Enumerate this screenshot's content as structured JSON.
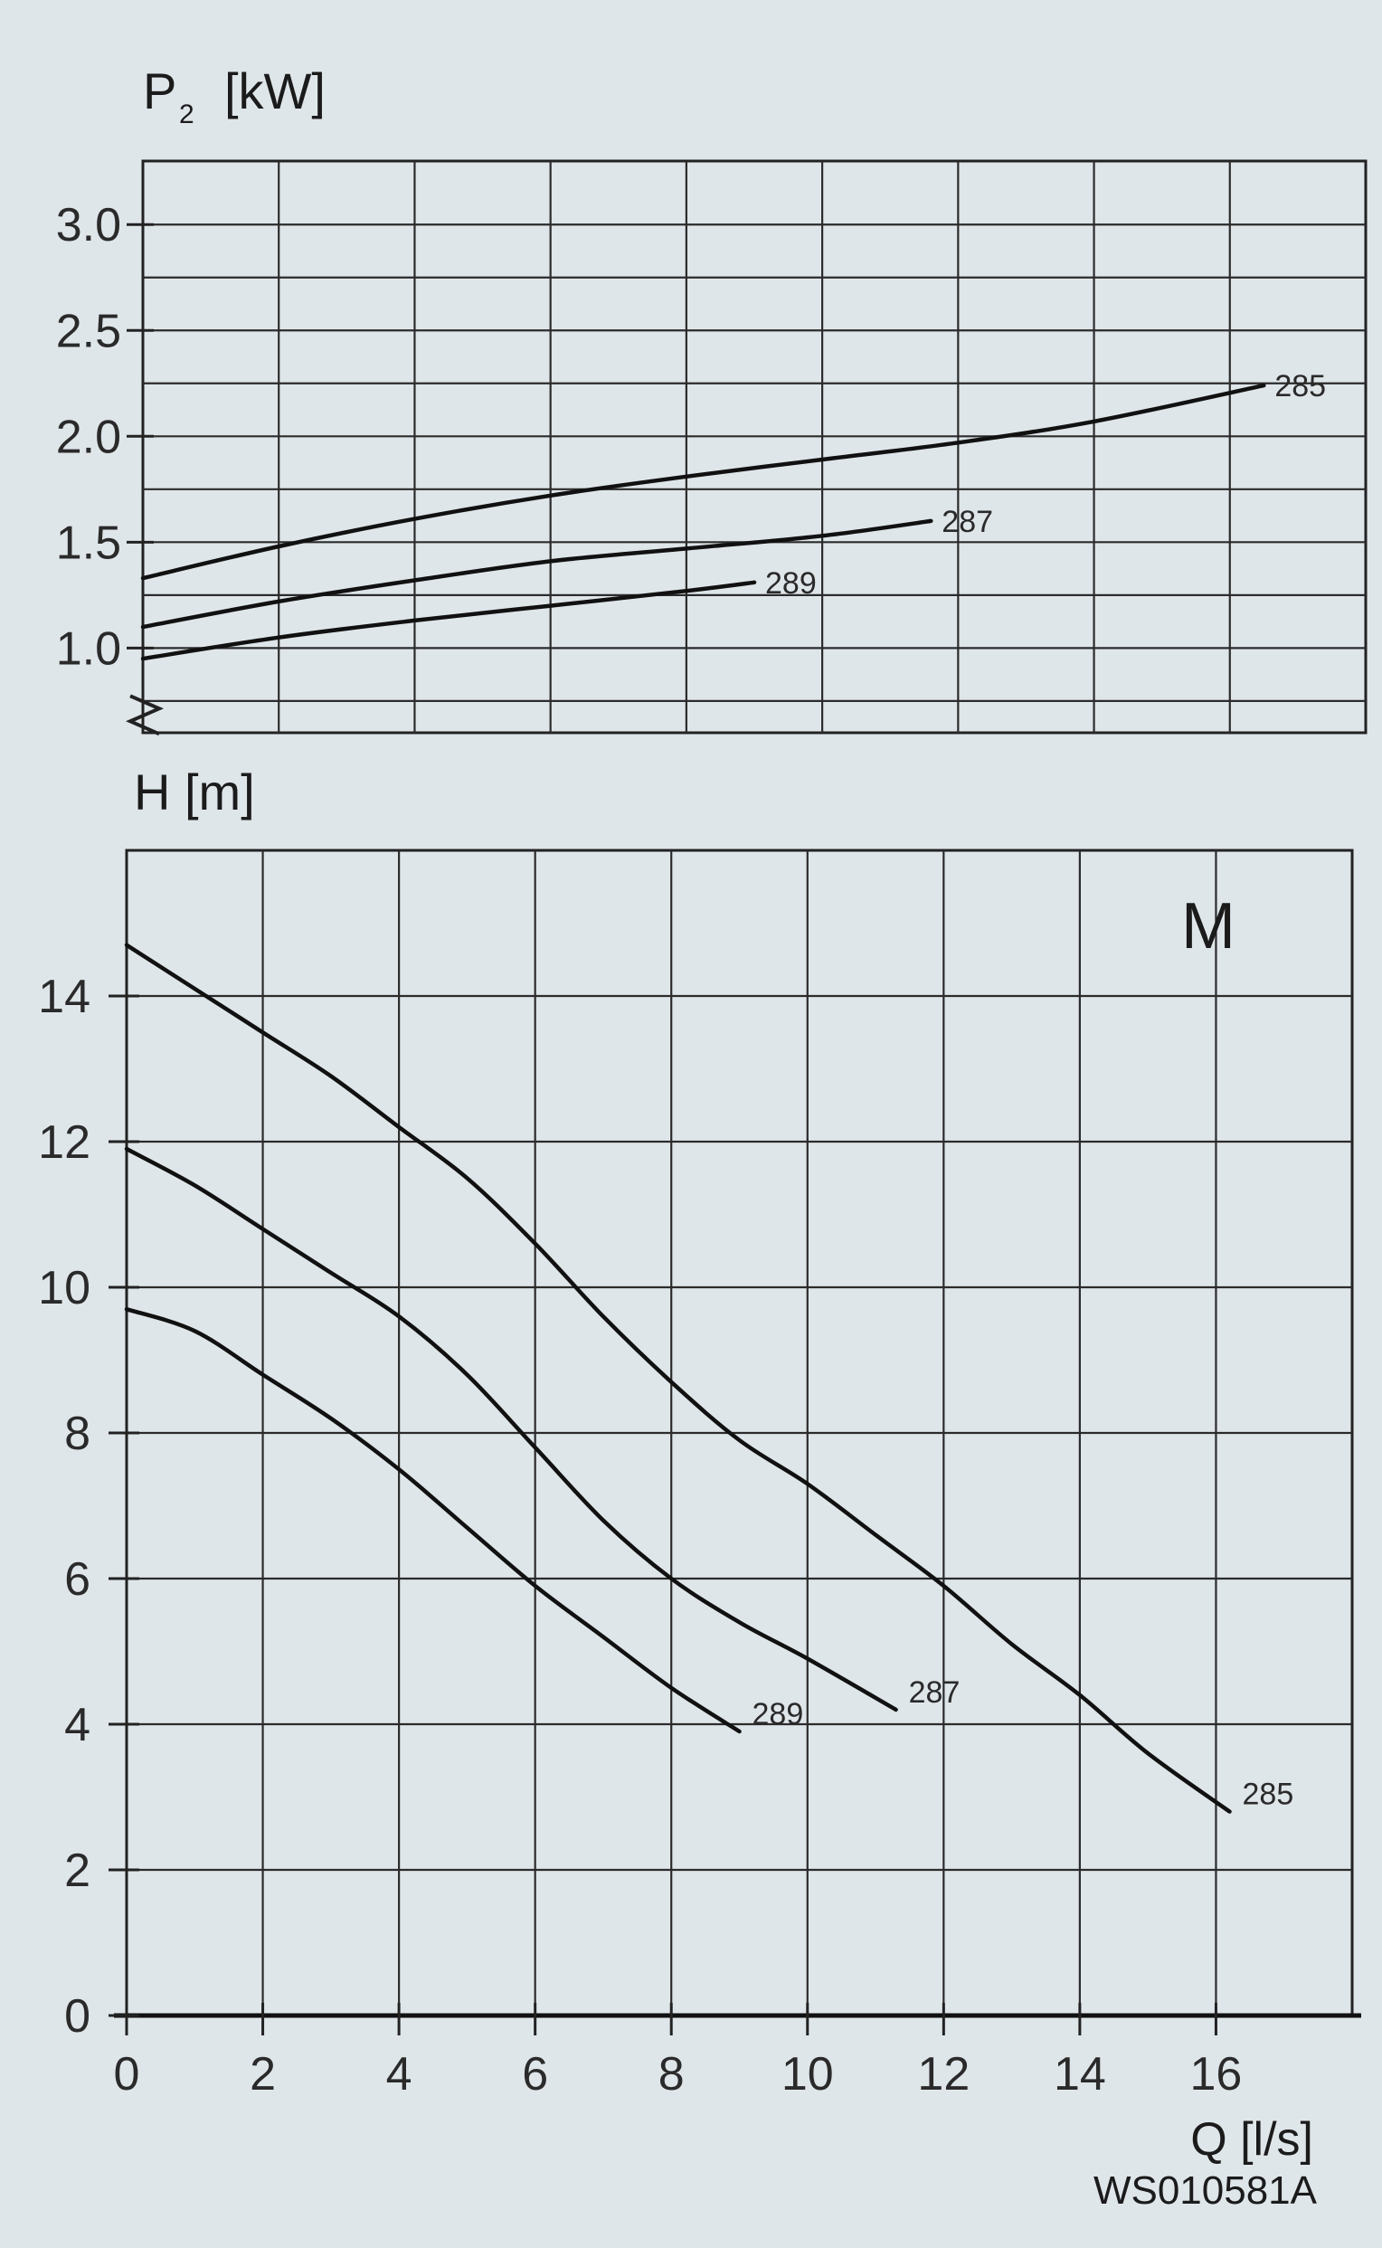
{
  "chart_data": [
    {
      "type": "line",
      "title": "",
      "ylabel": "P2 [kW]",
      "ylabel_main": "P",
      "ylabel_sub": "2",
      "ylabel_unit": "[kW]",
      "xlabel": "",
      "ylim": [
        0.6,
        3.3
      ],
      "xlim": [
        0,
        18
      ],
      "yticks": [
        "1.0",
        "1.5",
        "2.0",
        "2.5",
        "3.0"
      ],
      "grid": true,
      "axis_break": true,
      "series": [
        {
          "name": "285",
          "x": [
            0,
            2,
            4,
            6,
            8,
            10,
            12,
            14,
            16.5
          ],
          "y": [
            1.33,
            1.48,
            1.61,
            1.72,
            1.81,
            1.89,
            1.97,
            2.07,
            2.24
          ]
        },
        {
          "name": "287",
          "x": [
            0,
            2,
            4,
            6,
            8,
            10,
            11.6
          ],
          "y": [
            1.1,
            1.22,
            1.32,
            1.41,
            1.47,
            1.53,
            1.6
          ]
        },
        {
          "name": "289",
          "x": [
            0,
            2,
            4,
            6,
            8,
            9.0
          ],
          "y": [
            0.95,
            1.05,
            1.13,
            1.2,
            1.27,
            1.31
          ]
        }
      ]
    },
    {
      "type": "line",
      "title": "",
      "ylabel": "H [m]",
      "xlabel": "Q [l/s]",
      "xlim": [
        0,
        18
      ],
      "ylim": [
        0,
        16
      ],
      "xticks": [
        "0",
        "2",
        "4",
        "6",
        "8",
        "10",
        "12",
        "14",
        "16"
      ],
      "yticks": [
        "0",
        "2",
        "4",
        "6",
        "8",
        "10",
        "12",
        "14"
      ],
      "grid": true,
      "corner_label": "M",
      "footer_code": "WS010581A",
      "series": [
        {
          "name": "285",
          "x": [
            0,
            1,
            2,
            3,
            4,
            5,
            6,
            7,
            8,
            9,
            10,
            11,
            12,
            13,
            14,
            15,
            16.2
          ],
          "y": [
            14.7,
            14.1,
            13.5,
            12.9,
            12.2,
            11.5,
            10.6,
            9.6,
            8.7,
            7.9,
            7.3,
            6.6,
            5.9,
            5.1,
            4.4,
            3.6,
            2.8
          ]
        },
        {
          "name": "287",
          "x": [
            0,
            1,
            2,
            3,
            4,
            5,
            6,
            7,
            8,
            9,
            10,
            11.3
          ],
          "y": [
            11.9,
            11.4,
            10.8,
            10.2,
            9.6,
            8.8,
            7.8,
            6.8,
            6.0,
            5.4,
            4.9,
            4.2
          ]
        },
        {
          "name": "289",
          "x": [
            0,
            1,
            2,
            3,
            4,
            5,
            6,
            7,
            8,
            9.0
          ],
          "y": [
            9.7,
            9.4,
            8.8,
            8.2,
            7.5,
            6.7,
            5.9,
            5.2,
            4.5,
            3.9
          ]
        }
      ]
    }
  ]
}
